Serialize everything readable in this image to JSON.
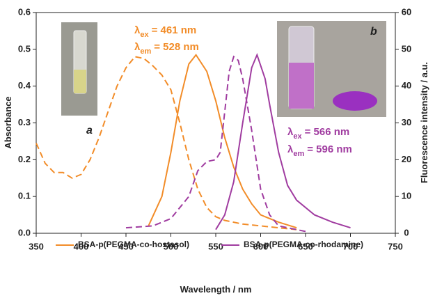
{
  "chart_data": {
    "type": "line",
    "x_label": "Wavelength / nm",
    "y_label": "Absorbance",
    "y2_label": "Fluorescence intensity / a.u.",
    "xlim": [
      350,
      750
    ],
    "xticks": [
      350,
      400,
      450,
      500,
      550,
      600,
      650,
      700,
      750
    ],
    "ylim": [
      0,
      0.6
    ],
    "yticks": [
      {
        "value": 0,
        "label": "0.0"
      },
      0.1,
      0.2,
      0.3,
      0.4,
      0.5,
      0.6
    ],
    "y2lim": [
      0,
      60
    ],
    "y2ticks": [
      0,
      10,
      20,
      30,
      40,
      50,
      60
    ],
    "series": [
      {
        "name": "BSA-p(PEGMA-co-hostasol)",
        "color": "#f28c28",
        "style": "solid",
        "axis": "y2",
        "x": [
          475,
          490,
          500,
          510,
          520,
          528,
          540,
          550,
          560,
          570,
          580,
          590,
          600,
          620,
          640
        ],
        "values": [
          2,
          10,
          22,
          36,
          46,
          48.5,
          44,
          36,
          26,
          18,
          12,
          8,
          5,
          3,
          1.5
        ]
      },
      {
        "name": "BSA-p(PEGMA-co-rhodamine)",
        "color": "#a03ca0",
        "style": "solid",
        "axis": "y2",
        "x": [
          550,
          560,
          570,
          580,
          590,
          596,
          605,
          610,
          620,
          630,
          640,
          660,
          680,
          700
        ],
        "values": [
          1,
          5,
          14,
          30,
          45,
          48.5,
          42,
          35,
          22,
          13,
          9,
          5,
          3,
          1.5
        ]
      },
      {
        "color": "#f28c28",
        "style": "dashed",
        "x": [
          350,
          360,
          370,
          380,
          390,
          400,
          410,
          420,
          430,
          440,
          450,
          460,
          470,
          480,
          490,
          500,
          510,
          520,
          530,
          540,
          550,
          560,
          580,
          600,
          620,
          640
        ],
        "values": [
          0.245,
          0.19,
          0.165,
          0.165,
          0.15,
          0.16,
          0.2,
          0.26,
          0.33,
          0.4,
          0.45,
          0.48,
          0.475,
          0.455,
          0.43,
          0.39,
          0.3,
          0.2,
          0.12,
          0.07,
          0.045,
          0.035,
          0.025,
          0.02,
          0.015,
          0.01
        ]
      },
      {
        "color": "#a03ca0",
        "style": "dashed",
        "x": [
          450,
          480,
          500,
          520,
          530,
          540,
          550,
          555,
          560,
          565,
          570,
          575,
          580,
          590,
          600,
          610,
          620,
          640,
          650
        ],
        "values": [
          0.015,
          0.02,
          0.04,
          0.1,
          0.17,
          0.195,
          0.2,
          0.22,
          0.33,
          0.44,
          0.48,
          0.47,
          0.42,
          0.28,
          0.12,
          0.05,
          0.02,
          0.01,
          0.005
        ]
      }
    ],
    "annotations": [
      {
        "symbol": "λ",
        "subscript": "ex",
        "text": "= 461 nm",
        "color": "#f28c28"
      },
      {
        "symbol": "λ",
        "subscript": "em",
        "text": "= 528 nm",
        "color": "#f28c28"
      },
      {
        "symbol": "λ",
        "subscript": "ex",
        "text": "= 566 nm",
        "color": "#a03ca0"
      },
      {
        "symbol": "λ",
        "subscript": "em",
        "text": "= 596 nm",
        "color": "#a03ca0"
      }
    ],
    "photo_labels": [
      "a",
      "b"
    ]
  }
}
